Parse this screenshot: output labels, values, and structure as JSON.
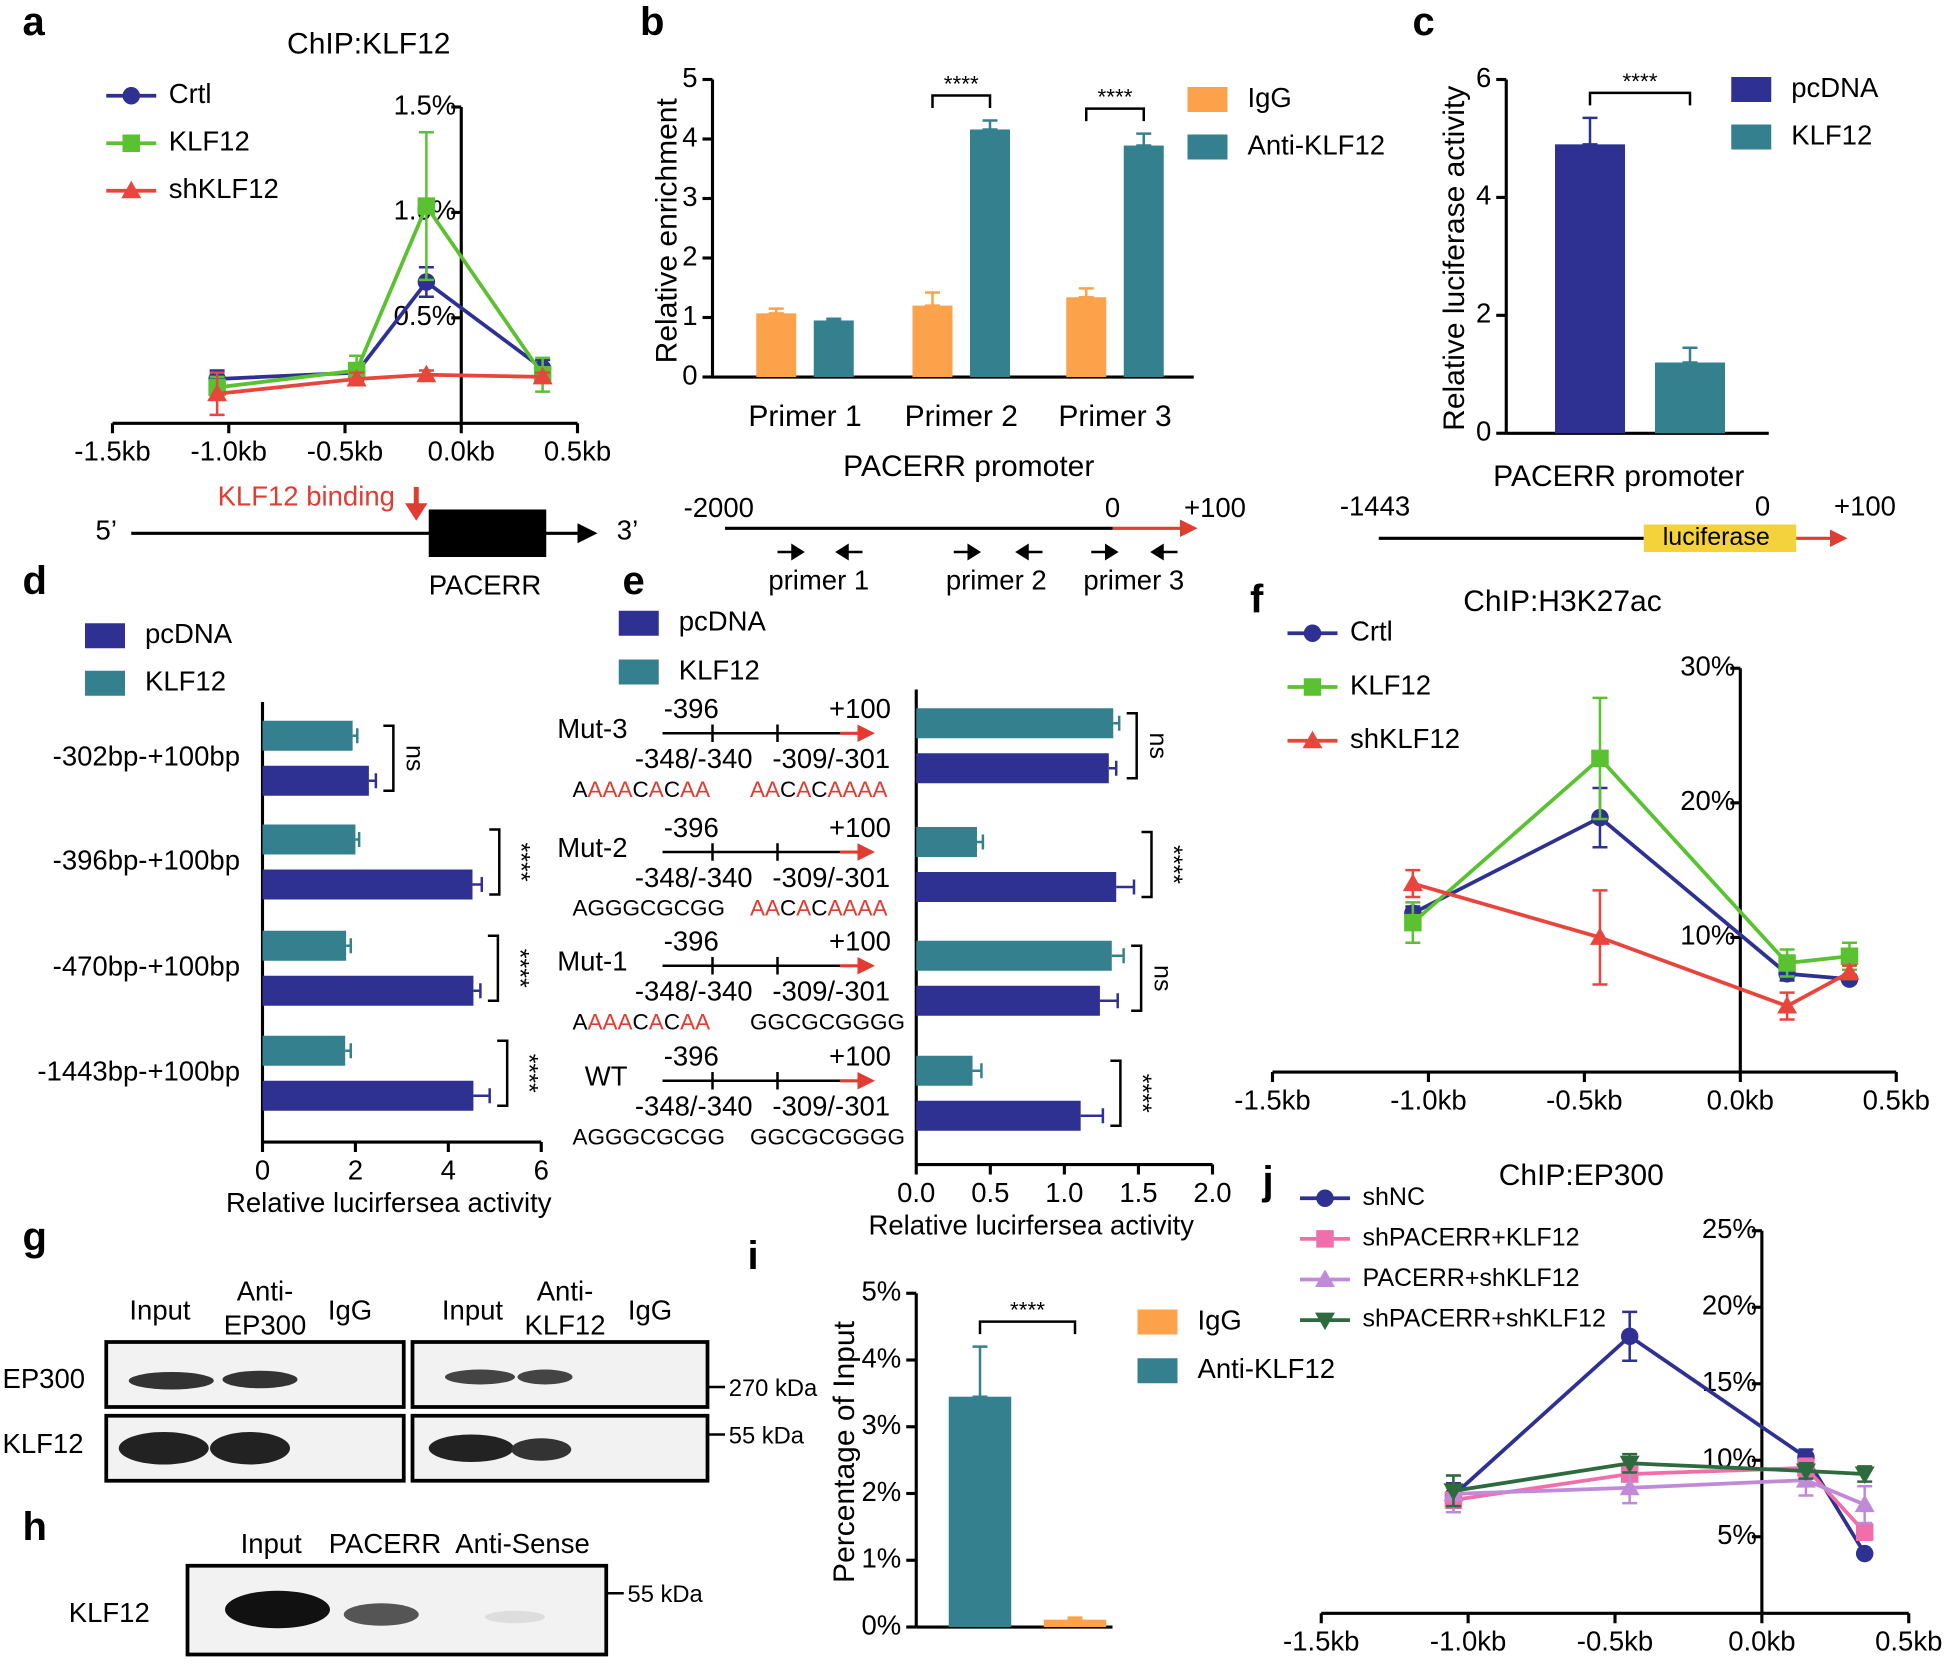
{
  "chart_data": [
    {
      "panel": "a",
      "type": "line",
      "title": "ChIP:KLF12",
      "x": [
        -1.05,
        -0.45,
        -0.15,
        0.35
      ],
      "xlim": [
        -1.5,
        0.5
      ],
      "xticks": [
        {
          "value": -1.5,
          "label": "-1.5kb"
        },
        {
          "value": -1,
          "label": "-1.0kb"
        },
        {
          "value": -0.5,
          "label": "-0.5kb"
        },
        {
          "value": 0,
          "label": "0.0kb"
        },
        {
          "value": 0.5,
          "label": "0.5kb"
        }
      ],
      "ylim": [
        0,
        1.5
      ],
      "yticks": [
        {
          "value": 0.5,
          "label": "0.5%"
        },
        {
          "value": 1,
          "label": "1.0%"
        },
        {
          "value": 1.5,
          "label": "1.5%"
        }
      ],
      "series": [
        {
          "name": "Crtl",
          "color": "#2e3192",
          "marker": "circle",
          "values": [
            0.21,
            0.24,
            0.67,
            0.26
          ],
          "errors": [
            0.04,
            0.04,
            0.07,
            0.04
          ]
        },
        {
          "name": "KLF12",
          "color": "#5ac231",
          "marker": "square",
          "values": [
            0.17,
            0.25,
            1.03,
            0.23
          ],
          "errors": [
            0.05,
            0.07,
            0.35,
            0.08
          ]
        },
        {
          "name": "shKLF12",
          "color": "#e8453c",
          "marker": "triangle",
          "values": [
            0.14,
            0.21,
            0.23,
            0.22
          ],
          "errors": [
            0.1,
            0.03,
            0.02,
            0.02
          ]
        }
      ]
    },
    {
      "panel": "b",
      "type": "bar",
      "categories": [
        "Primer 1",
        "Primer 2",
        "Primer 3"
      ],
      "xlabel": "PACERR promoter",
      "ylabel": "Relative enrichment",
      "ylim": [
        0,
        5
      ],
      "yticks": [
        0,
        1,
        2,
        3,
        4,
        5
      ],
      "series": [
        {
          "name": "IgG",
          "color": "#fba24b",
          "values": [
            1.07,
            1.2,
            1.34
          ],
          "errors": [
            0.08,
            0.22,
            0.15
          ]
        },
        {
          "name": "Anti-KLF12",
          "color": "#35808e",
          "values": [
            0.95,
            4.16,
            3.89
          ],
          "errors": [
            0.03,
            0.15,
            0.2
          ]
        }
      ],
      "significance": [
        null,
        "****",
        "****"
      ]
    },
    {
      "panel": "c",
      "type": "bar",
      "xlabel": "PACERR promoter",
      "ylabel": "Relative luciferase activity",
      "ylim": [
        0,
        6
      ],
      "yticks": [
        0,
        2,
        4,
        6
      ],
      "series": [
        {
          "name": "pcDNA",
          "color": "#2e3192",
          "values": [
            4.9
          ],
          "errors": [
            0.45
          ]
        },
        {
          "name": "KLF12",
          "color": "#35808e",
          "values": [
            1.2
          ],
          "errors": [
            0.25
          ]
        }
      ],
      "significance": [
        "****"
      ]
    },
    {
      "panel": "d",
      "type": "hbar",
      "categories": [
        "-302bp-+100bp",
        "-396bp-+100bp",
        "-470bp-+100bp",
        "-1443bp-+100bp"
      ],
      "xlabel": "Relative lucirfersea activity",
      "xlim": [
        0,
        6
      ],
      "xticks": [
        0,
        2,
        4,
        6
      ],
      "series": [
        {
          "name": "pcDNA",
          "color": "#2e3192",
          "values": [
            2.29,
            4.52,
            4.54,
            4.54
          ],
          "errors": [
            0.15,
            0.2,
            0.15,
            0.35
          ]
        },
        {
          "name": "KLF12",
          "color": "#35808e",
          "values": [
            1.94,
            2.0,
            1.8,
            1.78
          ],
          "errors": [
            0.1,
            0.08,
            0.1,
            0.12
          ]
        }
      ],
      "significance": [
        "ns",
        "****",
        "****",
        "****"
      ]
    },
    {
      "panel": "e",
      "type": "hbar",
      "categories": [
        "Mut-3",
        "Mut-2",
        "Mut-1",
        "WT"
      ],
      "xlabel": "Relative lucirfersea activity",
      "xlim": [
        0,
        2
      ],
      "xticks": [
        {
          "value": 0,
          "label": "0.0"
        },
        0.5,
        {
          "value": 1,
          "label": "1.0"
        },
        1.5,
        {
          "value": 2,
          "label": "2.0"
        }
      ],
      "series": [
        {
          "name": "pcDNA",
          "color": "#2e3192",
          "values": [
            1.3,
            1.35,
            1.24,
            1.11
          ],
          "errors": [
            0.05,
            0.12,
            0.12,
            0.15
          ]
        },
        {
          "name": "KLF12",
          "color": "#35808e",
          "values": [
            1.33,
            0.41,
            1.32,
            0.38
          ],
          "errors": [
            0.04,
            0.04,
            0.08,
            0.06
          ]
        }
      ],
      "significance": [
        "ns",
        "****",
        "ns",
        "****"
      ],
      "constructs": [
        {
          "start": "-396",
          "end": "+100",
          "site1": "-348/-340",
          "site2": "-309/-301",
          "seq1": [
            {
              "text": "A",
              "color": "#000000"
            },
            {
              "text": "AAA",
              "color": "#e03c31"
            },
            {
              "text": "C",
              "color": "#000000"
            },
            {
              "text": "A",
              "color": "#e03c31"
            },
            {
              "text": "C",
              "color": "#000000"
            },
            {
              "text": "AA",
              "color": "#e03c31"
            }
          ],
          "seq2": [
            {
              "text": "AA",
              "color": "#e03c31"
            },
            {
              "text": "C",
              "color": "#000000"
            },
            {
              "text": "A",
              "color": "#e03c31"
            },
            {
              "text": "C",
              "color": "#000000"
            },
            {
              "text": "AAAA",
              "color": "#e03c31"
            }
          ]
        },
        {
          "start": "-396",
          "end": "+100",
          "site1": "-348/-340",
          "site2": "-309/-301",
          "seq1": [
            {
              "text": "AGGGCGCGG",
              "color": "#000000"
            }
          ],
          "seq2": [
            {
              "text": "AA",
              "color": "#e03c31"
            },
            {
              "text": "C",
              "color": "#000000"
            },
            {
              "text": "A",
              "color": "#e03c31"
            },
            {
              "text": "C",
              "color": "#000000"
            },
            {
              "text": "AAAA",
              "color": "#e03c31"
            }
          ]
        },
        {
          "start": "-396",
          "end": "+100",
          "site1": "-348/-340",
          "site2": "-309/-301",
          "seq1": [
            {
              "text": "A",
              "color": "#000000"
            },
            {
              "text": "AAA",
              "color": "#e03c31"
            },
            {
              "text": "C",
              "color": "#000000"
            },
            {
              "text": "A",
              "color": "#e03c31"
            },
            {
              "text": "C",
              "color": "#000000"
            },
            {
              "text": "AA",
              "color": "#e03c31"
            }
          ],
          "seq2": [
            {
              "text": "GGCGCGGGG",
              "color": "#000000"
            }
          ]
        },
        {
          "start": "-396",
          "end": "+100",
          "site1": "-348/-340",
          "site2": "-309/-301",
          "seq1": [
            {
              "text": "AGGGCGCGG",
              "color": "#000000"
            }
          ],
          "seq2": [
            {
              "text": "GGCGCGGGG",
              "color": "#000000"
            }
          ]
        }
      ]
    },
    {
      "panel": "f",
      "type": "line",
      "title": "ChIP:H3K27ac",
      "x": [
        -1.05,
        -0.45,
        0.15,
        0.35
      ],
      "xlim": [
        -1.5,
        0.5
      ],
      "xticks": [
        {
          "value": -1.5,
          "label": "-1.5kb"
        },
        {
          "value": -1,
          "label": "-1.0kb"
        },
        {
          "value": -0.5,
          "label": "-0.5kb"
        },
        {
          "value": 0,
          "label": "0.0kb"
        },
        {
          "value": 0.5,
          "label": "0.5kb"
        }
      ],
      "ylim": [
        0,
        30
      ],
      "yticks": [
        {
          "value": 10,
          "label": "10%"
        },
        {
          "value": 20,
          "label": "20%"
        },
        {
          "value": 30,
          "label": "30%"
        }
      ],
      "series": [
        {
          "name": "Crtl",
          "color": "#2e3192",
          "marker": "circle",
          "values": [
            11.8,
            18.9,
            7.3,
            6.9
          ],
          "errors": [
            0.5,
            2.2,
            0.5,
            0.3
          ]
        },
        {
          "name": "KLF12",
          "color": "#5ac231",
          "marker": "square",
          "values": [
            11.1,
            23.3,
            8.1,
            8.6
          ],
          "errors": [
            1.5,
            4.5,
            1.0,
            1.0
          ]
        },
        {
          "name": "shKLF12",
          "color": "#e8453c",
          "marker": "triangle",
          "values": [
            14,
            10,
            4.9,
            7.4
          ],
          "errors": [
            1.0,
            3.5,
            1.0,
            0.5
          ]
        }
      ]
    },
    {
      "panel": "i",
      "type": "bar",
      "ylabel": "Percentage of Input",
      "ylim": [
        0,
        5
      ],
      "yticks": [
        {
          "value": 0,
          "label": "0%"
        },
        {
          "value": 1,
          "label": "1%"
        },
        {
          "value": 2,
          "label": "2%"
        },
        {
          "value": 3,
          "label": "3%"
        },
        {
          "value": 4,
          "label": "4%"
        },
        {
          "value": 5,
          "label": "5%"
        }
      ],
      "series": [
        {
          "name": "IgG",
          "color": "#fba24b",
          "values": [
            0.11
          ],
          "errors": [
            0.03
          ]
        },
        {
          "name": "Anti-KLF12",
          "color": "#35808e",
          "values": [
            3.45
          ],
          "errors": [
            0.75
          ]
        }
      ],
      "significance": [
        "****"
      ]
    },
    {
      "panel": "j",
      "type": "line",
      "title": "ChIP:EP300",
      "x": [
        -1.05,
        -0.45,
        0.15,
        0.35
      ],
      "xlim": [
        -1.5,
        0.5
      ],
      "xticks": [
        {
          "value": -1.5,
          "label": "-1.5kb"
        },
        {
          "value": -1,
          "label": "-1.0kb"
        },
        {
          "value": -0.5,
          "label": "-0.5kb"
        },
        {
          "value": 0,
          "label": "0.0kb"
        },
        {
          "value": 0.5,
          "label": "0.5kb"
        }
      ],
      "ylim": [
        0,
        25
      ],
      "yticks": [
        {
          "value": 5,
          "label": "5%"
        },
        {
          "value": 10,
          "label": "10%"
        },
        {
          "value": 15,
          "label": "15%"
        },
        {
          "value": 20,
          "label": "20%"
        },
        {
          "value": 25,
          "label": "25%"
        }
      ],
      "series": [
        {
          "name": "shNC",
          "color": "#2e3192",
          "marker": "circle",
          "values": [
            7.7,
            18.1,
            10.2,
            3.9
          ],
          "errors": [
            0.8,
            1.6,
            0.5,
            0.2
          ]
        },
        {
          "name": "shPACERR+KLF12",
          "color": "#f06ea9",
          "marker": "square",
          "values": [
            7.4,
            9.1,
            9.5,
            5.3
          ],
          "errors": [
            0.8,
            0.9,
            0.6,
            0.5
          ]
        },
        {
          "name": "PACERR+shKLF12",
          "color": "#c08ad8",
          "marker": "triangle",
          "values": [
            7.8,
            8.2,
            8.7,
            7.1
          ],
          "errors": [
            1.2,
            1.0,
            1.0,
            1.2
          ]
        },
        {
          "name": "shPACERR+shKLF12",
          "color": "#2d6a3e",
          "marker": "dtriangle",
          "values": [
            8.0,
            9.8,
            9.3,
            9.1
          ],
          "errors": [
            1.0,
            0.6,
            0.5,
            0.5
          ]
        }
      ]
    }
  ],
  "diagrams": {
    "a": {
      "binding": "KLF12 binding",
      "five": "5’",
      "three": "3’",
      "gene": "PACERR"
    },
    "b": {
      "start": "-2000",
      "zero": "0",
      "end": "+100",
      "primers": [
        "primer 1",
        "primer 2",
        "primer 3"
      ]
    },
    "c": {
      "start": "-1443",
      "zero": "0",
      "end": "+100",
      "reporter": "luciferase"
    }
  },
  "blots": {
    "g": {
      "panel": "g",
      "lanes": [
        "Input",
        "Anti-",
        "EP300",
        "IgG",
        "Input",
        "Anti-",
        "KLF12",
        "IgG"
      ],
      "rows": [
        "EP300",
        "KLF12"
      ],
      "markers": [
        "270 kDa",
        "55 kDa"
      ]
    },
    "h": {
      "panel": "h",
      "lanes": [
        "Input",
        "PACERR",
        "Anti-Sense"
      ],
      "rows": [
        "KLF12"
      ],
      "markers": [
        "55 kDa"
      ]
    }
  }
}
